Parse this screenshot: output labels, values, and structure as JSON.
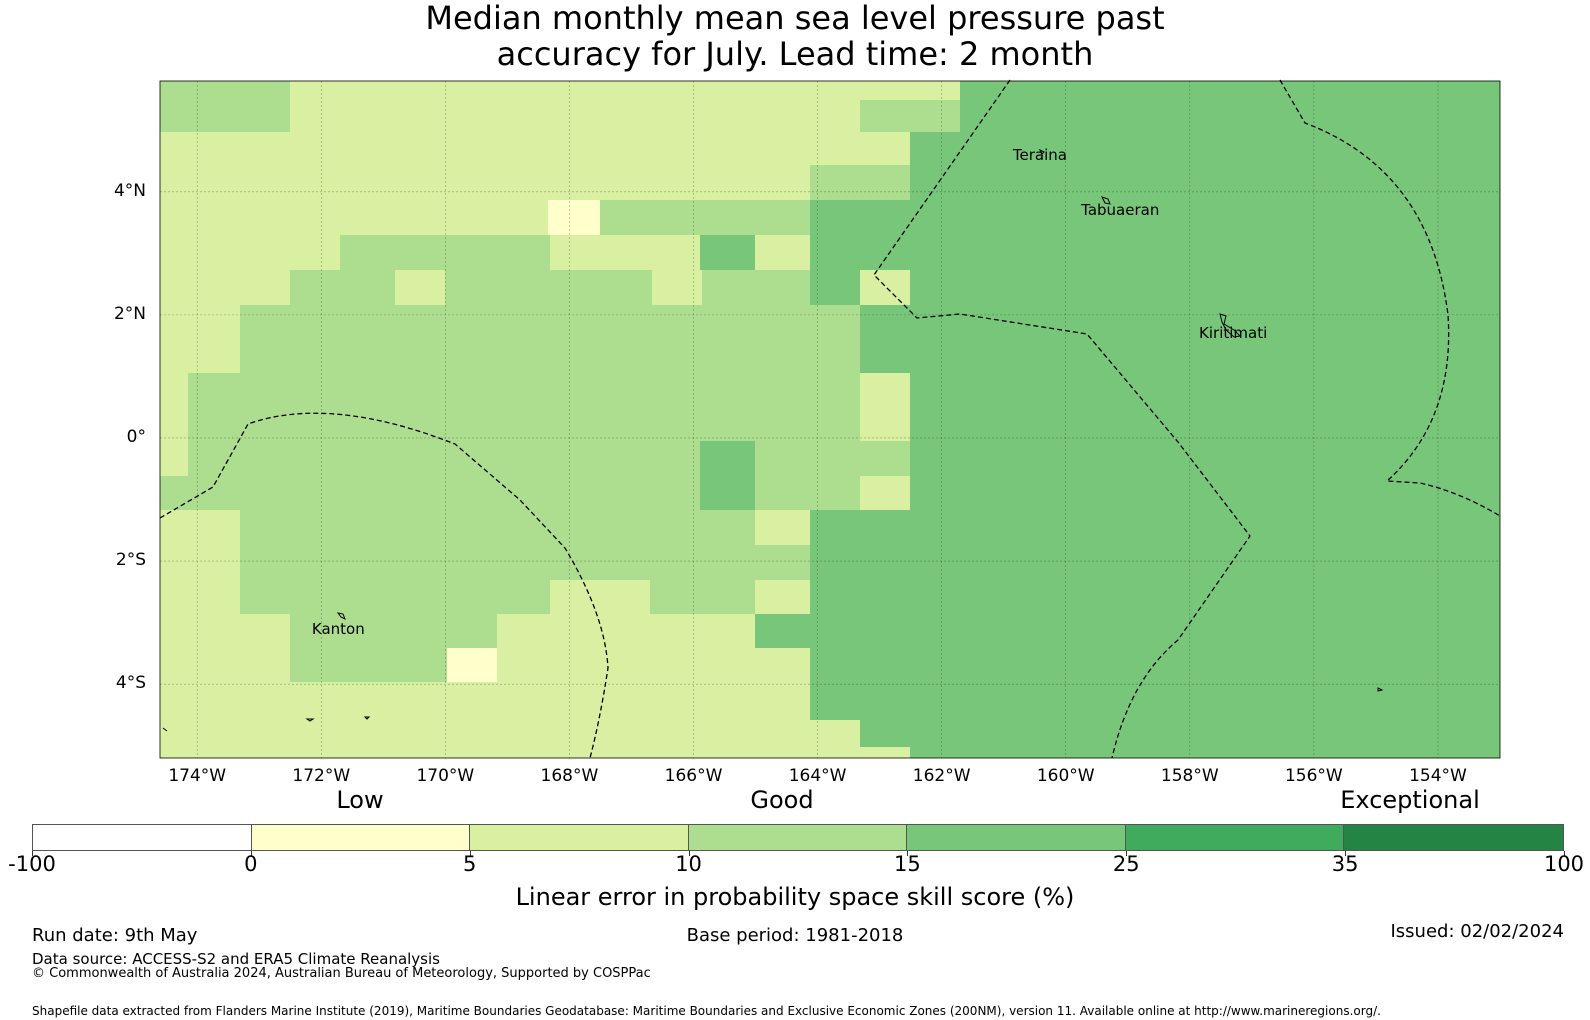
{
  "title": {
    "line1": "Median monthly mean sea level pressure past",
    "line2": "accuracy for July. Lead time: 2 month"
  },
  "map": {
    "lat_range": [
      -5.2,
      5.8
    ],
    "lon_range": [
      -174.6,
      -153.0
    ],
    "lat_ticks": [
      {
        "value": 4,
        "label": "4°N"
      },
      {
        "value": 2,
        "label": "2°N"
      },
      {
        "value": 0,
        "label": "0°"
      },
      {
        "value": -2,
        "label": "2°S"
      },
      {
        "value": -4,
        "label": "4°S"
      }
    ],
    "lon_ticks": [
      {
        "value": -174,
        "label": "174°W"
      },
      {
        "value": -172,
        "label": "172°W"
      },
      {
        "value": -170,
        "label": "170°W"
      },
      {
        "value": -168,
        "label": "168°W"
      },
      {
        "value": -166,
        "label": "166°W"
      },
      {
        "value": -164,
        "label": "164°W"
      },
      {
        "value": -162,
        "label": "162°W"
      },
      {
        "value": -160,
        "label": "160°W"
      },
      {
        "value": -158,
        "label": "158°W"
      },
      {
        "value": -156,
        "label": "156°W"
      },
      {
        "value": -154,
        "label": "154°W"
      }
    ],
    "places": [
      {
        "name": "Teraina",
        "lon": -160.4,
        "lat": 4.6
      },
      {
        "name": "Tabuaeran",
        "lon": -159.3,
        "lat": 3.7
      },
      {
        "name": "Kiritimati",
        "lon": -157.4,
        "lat": 1.7
      },
      {
        "name": "Kanton",
        "lon": -171.7,
        "lat": -3.1
      }
    ],
    "colors": {
      "c0_5": "#ffffcc",
      "c5_10": "#d9f0a3",
      "c10_15": "#addd8e",
      "c15_25": "#78c679"
    }
  },
  "legend": {
    "categories": [
      "Low",
      "Good",
      "Exceptional"
    ],
    "bins": [
      {
        "from": "-100",
        "to": "0",
        "color": "#ffffff"
      },
      {
        "from": "0",
        "to": "5",
        "color": "#ffffcc"
      },
      {
        "from": "5",
        "to": "10",
        "color": "#d9f0a3"
      },
      {
        "from": "10",
        "to": "15",
        "color": "#addd8e"
      },
      {
        "from": "15",
        "to": "25",
        "color": "#78c679"
      },
      {
        "from": "25",
        "to": "35",
        "color": "#41ab5d"
      },
      {
        "from": "35",
        "to": "100",
        "color": "#238443"
      }
    ],
    "ticks": [
      "-100",
      "0",
      "5",
      "10",
      "15",
      "25",
      "35",
      "100"
    ],
    "label": "Linear error in probability space skill score (%)"
  },
  "footer": {
    "run_date": "Run date: 9th May",
    "base_period": "Base period: 1981-2018",
    "issued": "Issued: 02/02/2024",
    "data_source": "Data source: ACCESS-S2 and ERA5 Climate Reanalysis",
    "copyright": "© Commonwealth of Australia 2024, Australian Bureau of Meteorology, Supported by COSPPac",
    "shapefile": "Shapefile data extracted from Flanders Marine Institute (2019), Maritime Boundaries Geodatabase: Maritime Boundaries and Exclusive Economic Zones (200NM), version 11. Available online at http://www.marineregions.org/."
  }
}
